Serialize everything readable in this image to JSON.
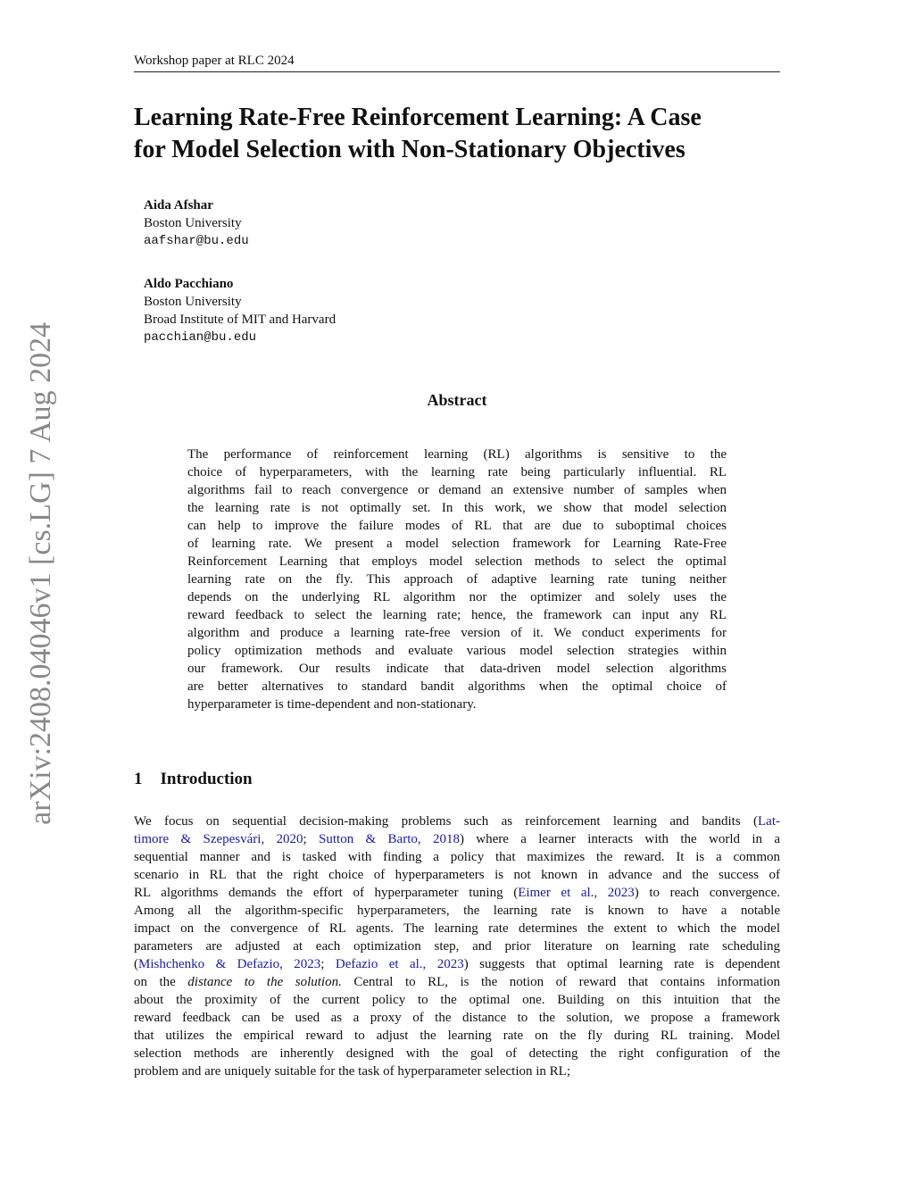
{
  "header": "Workshop paper at RLC 2024",
  "title_lines": [
    "Learning Rate-Free Reinforcement Learning: A Case",
    "for Model Selection with Non-Stationary Objectives"
  ],
  "authors": [
    {
      "name": "Aida Afshar",
      "affiliations": [
        "Boston University"
      ],
      "email": "aafshar@bu.edu"
    },
    {
      "name": "Aldo Pacchiano",
      "affiliations": [
        "Boston University",
        "Broad Institute of MIT and Harvard"
      ],
      "email": "pacchian@bu.edu"
    }
  ],
  "arxiv_id": "arXiv:2408.04046v1  [cs.LG]  7 Aug 2024",
  "abstract": {
    "heading": "Abstract",
    "lines": [
      "The performance of reinforcement learning (RL) algorithms is sensitive to the",
      "choice of hyperparameters, with the learning rate being particularly influential. RL",
      "algorithms fail to reach convergence or demand an extensive number of samples when",
      "the learning rate is not optimally set. In this work, we show that model selection",
      "can help to improve the failure modes of RL that are due to suboptimal choices",
      "of learning rate. We present a model selection framework for Learning Rate-Free",
      "Reinforcement Learning that employs model selection methods to select the optimal",
      "learning rate on the fly. This approach of adaptive learning rate tuning neither",
      "depends on the underlying RL algorithm nor the optimizer and solely uses the",
      "reward feedback to select the learning rate; hence, the framework can input any RL",
      "algorithm and produce a learning rate-free version of it. We conduct experiments for",
      "policy optimization methods and evaluate various model selection strategies within",
      "our framework. Our results indicate that data-driven model selection algorithms",
      "are better alternatives to standard bandit algorithms when the optimal choice of",
      "hyperparameter is time-dependent and non-stationary."
    ]
  },
  "section": {
    "number": "1",
    "title": "Introduction"
  },
  "intro_lines": [
    [
      {
        "t": "We focus on sequential decision-making problems such as reinforcement learning and bandits ("
      },
      {
        "t": "Lat-",
        "link": true
      }
    ],
    [
      {
        "t": "timore & Szepesvári, 2020",
        "link": true
      },
      {
        "t": "; "
      },
      {
        "t": "Sutton & Barto, 2018",
        "link": true
      },
      {
        "t": ") where a learner interacts with the world in a"
      }
    ],
    [
      {
        "t": "sequential manner and is tasked with finding a policy that maximizes the reward. It is a common"
      }
    ],
    [
      {
        "t": "scenario in RL that the right choice of hyperparameters is not known in advance and the success of"
      }
    ],
    [
      {
        "t": "RL algorithms demands the effort of hyperparameter tuning ("
      },
      {
        "t": "Eimer et al., 2023",
        "link": true
      },
      {
        "t": ") to reach convergence."
      }
    ],
    [
      {
        "t": "Among all the algorithm-specific hyperparameters, the learning rate is known to have a notable"
      }
    ],
    [
      {
        "t": "impact on the convergence of RL agents. The learning rate determines the extent to which the model"
      }
    ],
    [
      {
        "t": "parameters are adjusted at each optimization step, and prior literature on learning rate scheduling"
      }
    ],
    [
      {
        "t": "("
      },
      {
        "t": "Mishchenko & Defazio, 2023",
        "link": true
      },
      {
        "t": "; "
      },
      {
        "t": "Defazio et al., 2023",
        "link": true
      },
      {
        "t": ") suggests that optimal learning rate is dependent"
      }
    ],
    [
      {
        "t": "on the "
      },
      {
        "t": "distance to the solution.",
        "em": true
      },
      {
        "t": " Central to RL, is the notion of reward that contains information"
      }
    ],
    [
      {
        "t": "about the proximity of the current policy to the optimal one. Building on this intuition that the"
      }
    ],
    [
      {
        "t": "reward feedback can be used as a proxy of the distance to the solution, we propose a framework"
      }
    ],
    [
      {
        "t": "that utilizes the empirical reward to adjust the learning rate on the fly during RL training. Model"
      }
    ],
    [
      {
        "t": "selection methods are inherently designed with the goal of detecting the right configuration of the"
      }
    ],
    [
      {
        "t": "problem and are uniquely suitable for the task of hyperparameter selection in RL;"
      }
    ]
  ],
  "colors": {
    "link": "#1a1aa6",
    "sidebar": "#888888"
  }
}
